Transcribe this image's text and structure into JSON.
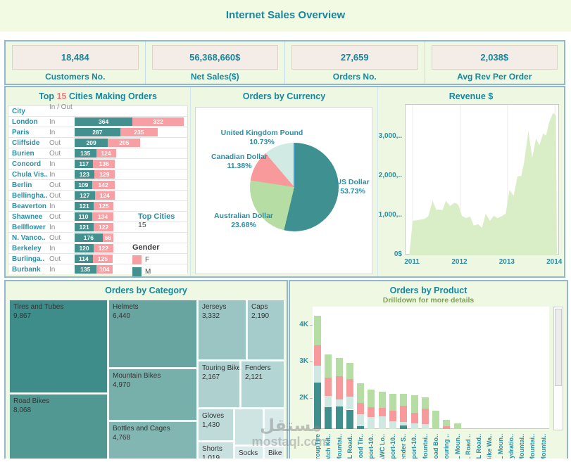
{
  "header": {
    "title": "Internet Sales Overview"
  },
  "kpis": [
    {
      "value": "18,484",
      "label": "Customers No."
    },
    {
      "value": "56,368,660$",
      "label": "Net Sales($)"
    },
    {
      "value": "27,659",
      "label": "Orders No."
    },
    {
      "value": "2,038$",
      "label": "Avg Rev Per Order"
    }
  ],
  "cities_panel": {
    "title_prefix": "Top ",
    "title_number": "15",
    "title_suffix": " Cities Making Orders",
    "columns": [
      "City",
      "In / Out .."
    ],
    "annotation": {
      "title": "Top Cities",
      "value": "15"
    },
    "legend": {
      "title": "Gender",
      "items": [
        {
          "label": "F",
          "color": "#f89fa4"
        },
        {
          "label": "M",
          "color": "#43908e"
        }
      ]
    },
    "colors": {
      "male": "#43908e",
      "female": "#f89fa4"
    },
    "rows": [
      {
        "city": "London",
        "inout": "In",
        "m": 364,
        "f": 322
      },
      {
        "city": "Paris",
        "inout": "In",
        "m": 287,
        "f": 235
      },
      {
        "city": "Cliffside",
        "inout": "Out",
        "m": 209,
        "f": 205
      },
      {
        "city": "Burien",
        "inout": "Out",
        "m": 135,
        "f": 124
      },
      {
        "city": "Concord",
        "inout": "In",
        "m": 117,
        "f": 136
      },
      {
        "city": "Chula Vis..",
        "inout": "In",
        "m": 123,
        "f": 129
      },
      {
        "city": "Berlin",
        "inout": "Out",
        "m": 109,
        "f": 142
      },
      {
        "city": "Bellingha..",
        "inout": "Out",
        "m": 127,
        "f": 124
      },
      {
        "city": "Beaverton",
        "inout": "In",
        "m": 121,
        "f": 125
      },
      {
        "city": "Shawnee",
        "inout": "Out",
        "m": 110,
        "f": 134
      },
      {
        "city": "Bellflower",
        "inout": "In",
        "m": 121,
        "f": 122
      },
      {
        "city": "N. Vanco..",
        "inout": "Out",
        "m": 176,
        "f": 66
      },
      {
        "city": "Berkeley",
        "inout": "In",
        "m": 120,
        "f": 122
      },
      {
        "city": "Burlinga..",
        "inout": "Out",
        "m": 114,
        "f": 125
      },
      {
        "city": "Burbank",
        "inout": "In",
        "m": 135,
        "f": 104
      }
    ]
  },
  "chart_data": [
    {
      "id": "orders_by_currency",
      "type": "pie",
      "title": "Orders by Currency",
      "start_angle_deg": 0,
      "clockwise": true,
      "slices": [
        {
          "label": "US Dollar",
          "pct": 53.73,
          "pct_text": "53.73%",
          "color": "#3f9191"
        },
        {
          "label": "Australian Dollar",
          "pct": 23.68,
          "pct_text": "23.68%",
          "color": "#b5dda4"
        },
        {
          "label": "Canadian Dollar",
          "pct": 11.38,
          "pct_text": "11.38%",
          "color": "#f8999c"
        },
        {
          "label": "United Kingdom Pound",
          "pct": 10.73,
          "pct_text": "10.73%",
          "color": "#d2eae4"
        }
      ]
    },
    {
      "id": "revenue",
      "type": "area",
      "title": "Revenue $",
      "fill_color": "#d9eec6",
      "grid": true,
      "ylabels": [
        {
          "text": "0$",
          "value": 0
        },
        {
          "text": "1,000,..",
          "value": 1000
        },
        {
          "text": "2,000,..",
          "value": 2000
        },
        {
          "text": "3,000,..",
          "value": 3000
        }
      ],
      "xticks": [
        {
          "text": "2011",
          "value": 2011
        },
        {
          "text": "2012",
          "value": 2012
        },
        {
          "text": "2013",
          "value": 2013
        },
        {
          "text": "2014",
          "value": 2014
        }
      ],
      "x_domain": [
        2010.85,
        2014.1
      ],
      "y_domain": [
        0,
        3820
      ],
      "points": [
        [
          2010.93,
          20
        ],
        [
          2011.0,
          870
        ],
        [
          2011.08,
          890
        ],
        [
          2011.17,
          905
        ],
        [
          2011.25,
          925
        ],
        [
          2011.33,
          990
        ],
        [
          2011.42,
          1390
        ],
        [
          2011.5,
          1150
        ],
        [
          2011.54,
          1165
        ],
        [
          2011.63,
          1145
        ],
        [
          2011.7,
          1385
        ],
        [
          2011.79,
          1250
        ],
        [
          2011.88,
          1335
        ],
        [
          2011.96,
          1290
        ],
        [
          2012.04,
          995
        ],
        [
          2012.13,
          945
        ],
        [
          2012.21,
          985
        ],
        [
          2012.29,
          755
        ],
        [
          2012.38,
          790
        ],
        [
          2012.46,
          695
        ],
        [
          2012.54,
          1055
        ],
        [
          2012.63,
          875
        ],
        [
          2012.71,
          1005
        ],
        [
          2012.79,
          945
        ],
        [
          2012.88,
          995
        ],
        [
          2012.96,
          1055
        ],
        [
          2013.04,
          1655
        ],
        [
          2013.13,
          1515
        ],
        [
          2013.21,
          2005
        ],
        [
          2013.29,
          2015
        ],
        [
          2013.35,
          2375
        ],
        [
          2013.44,
          3165
        ],
        [
          2013.52,
          2475
        ],
        [
          2013.6,
          2965
        ],
        [
          2013.67,
          2790
        ],
        [
          2013.75,
          3090
        ],
        [
          2013.81,
          3040
        ],
        [
          2013.88,
          3390
        ],
        [
          2013.96,
          3615
        ],
        [
          2014.02,
          3550
        ],
        [
          2014.04,
          30
        ]
      ]
    },
    {
      "id": "orders_by_category",
      "type": "treemap",
      "title": "Orders by Category",
      "items": [
        {
          "label": "Tires and Tubes",
          "value": "9,867"
        },
        {
          "label": "Road Bikes",
          "value": "8,068"
        },
        {
          "label": "Helmets",
          "value": "6,440"
        },
        {
          "label": "Mountain Bikes",
          "value": "4,970"
        },
        {
          "label": "Bottles and Cages",
          "value": "4,768"
        },
        {
          "label": "Jerseys",
          "value": "3,332"
        },
        {
          "label": "Caps",
          "value": "2,190"
        },
        {
          "label": "Touring Bikes",
          "value": "2,167"
        },
        {
          "label": "Fenders",
          "value": "2,121"
        },
        {
          "label": "Gloves",
          "value": "1,430"
        },
        {
          "label": "",
          "value": ""
        },
        {
          "label": "",
          "value": ""
        },
        {
          "label": "Shorts",
          "value": "1,019"
        },
        {
          "label": "Socks",
          "value": ""
        },
        {
          "label": "Bike",
          "value": ""
        }
      ]
    },
    {
      "id": "orders_by_product",
      "type": "stacked_bar",
      "title": "Orders by Product",
      "subtitle": "Drilldown for more details",
      "ylabels": [
        {
          "text": "2K",
          "value": 2
        },
        {
          "text": "3K",
          "value": 3
        },
        {
          "text": "4K",
          "value": 4
        }
      ],
      "y_window": [
        1.15,
        4.5
      ],
      "segment_colors": [
        "#3f8f8d",
        "#cfe8e2",
        "#f8999c",
        "#b5dda4"
      ],
      "bars": [
        {
          "label": "GroupTire",
          "segments": [
            2.42,
            0.47,
            0.56,
            0.8
          ]
        },
        {
          "label": "Patch Kit..",
          "segments": [
            1.74,
            0.31,
            0.5,
            0.65
          ]
        },
        {
          "label": "Mountai..",
          "segments": [
            1.76,
            0.2,
            0.64,
            0.5
          ]
        },
        {
          "label": "LL Road..",
          "segments": [
            1.68,
            0.36,
            0.48,
            0.44
          ]
        },
        {
          "label": "Road Tir..",
          "segments": [
            1.22,
            0.33,
            0.32,
            0.53
          ]
        },
        {
          "label": "Sport-10..",
          "segments": [
            0,
            1.48,
            0.27,
            0.48
          ]
        },
        {
          "label": "AWC Lo..",
          "segments": [
            0,
            1.5,
            0.22,
            0.46
          ]
        },
        {
          "label": "Sport-10..",
          "segments": [
            0,
            1.37,
            0.28,
            0.47
          ]
        },
        {
          "label": "Fender S..",
          "segments": [
            1.25,
            0.1,
            0.43,
            0.34
          ]
        },
        {
          "label": "Sport-10..",
          "segments": [
            0,
            1.3,
            0.3,
            0.48
          ]
        },
        {
          "label": "Mountai..",
          "segments": [
            0,
            1.28,
            0.42,
            0.32
          ]
        },
        {
          "label": "Road Bo..",
          "segments": [
            0,
            0,
            0,
            1.65
          ]
        },
        {
          "label": "Touring ..",
          "segments": [
            0,
            0,
            1.22,
            0.18
          ]
        },
        {
          "label": "LL Moun..",
          "segments": [
            0,
            0,
            0,
            1.3
          ]
        },
        {
          "label": "LL Road ..",
          "segments": [
            0,
            0,
            0,
            1.05
          ]
        },
        {
          "label": "ML Road..",
          "segments": [
            0,
            0,
            0,
            1.02
          ]
        },
        {
          "label": "Bike Wa..",
          "segments": [
            0,
            0,
            0,
            1.0
          ]
        },
        {
          "label": "LL Moun..",
          "segments": [
            0,
            0,
            0,
            0.98
          ]
        },
        {
          "label": "Hydratio..",
          "segments": [
            0,
            0,
            0,
            0.95
          ]
        },
        {
          "label": "Mountai..",
          "segments": [
            0,
            0,
            0,
            0.9
          ]
        },
        {
          "label": "Mountai..",
          "segments": [
            0,
            0,
            0,
            0.85
          ]
        },
        {
          "label": "Mountai..",
          "segments": [
            0,
            0,
            0,
            0.8
          ]
        }
      ]
    }
  ],
  "watermark": {
    "line1": "مستقل",
    "line2": "mostaql.com"
  }
}
